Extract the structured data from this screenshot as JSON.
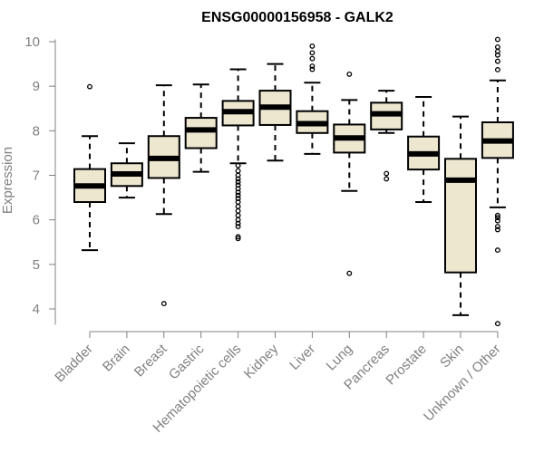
{
  "chart_data": {
    "type": "boxplot",
    "title": "ENSG00000156958 - GALK2",
    "xlabel": "",
    "ylabel": "Expression",
    "ylim": [
      3.65,
      10.05
    ],
    "yticks": [
      4,
      5,
      6,
      7,
      8,
      9,
      10
    ],
    "categories": [
      "Bladder",
      "Brain",
      "Breast",
      "Gastric",
      "Hematopoietic cells",
      "Kidney",
      "Liver",
      "Lung",
      "Pancreas",
      "Prostate",
      "Skin",
      "Unknown / Other"
    ],
    "boxes": [
      {
        "name": "Bladder",
        "whisker_low": 5.32,
        "q1": 6.4,
        "median": 6.76,
        "q3": 7.14,
        "whisker_high": 7.88,
        "outliers": [
          8.99
        ]
      },
      {
        "name": "Brain",
        "whisker_low": 6.5,
        "q1": 6.76,
        "median": 7.03,
        "q3": 7.27,
        "whisker_high": 7.72,
        "outliers": []
      },
      {
        "name": "Breast",
        "whisker_low": 6.13,
        "q1": 6.94,
        "median": 7.38,
        "q3": 7.88,
        "whisker_high": 9.02,
        "outliers": [
          4.12
        ]
      },
      {
        "name": "Gastric",
        "whisker_low": 7.08,
        "q1": 7.61,
        "median": 8.02,
        "q3": 8.29,
        "whisker_high": 9.04,
        "outliers": []
      },
      {
        "name": "Hematopoietic cells",
        "whisker_low": 7.27,
        "q1": 8.12,
        "median": 8.43,
        "q3": 8.67,
        "whisker_high": 9.38,
        "outliers": [
          7.22,
          7.1,
          7.0,
          6.92,
          6.85,
          6.78,
          6.7,
          6.62,
          6.55,
          6.48,
          6.4,
          6.3,
          6.2,
          6.1,
          6.0,
          5.92,
          5.85,
          5.62,
          5.58
        ]
      },
      {
        "name": "Kidney",
        "whisker_low": 7.33,
        "q1": 8.13,
        "median": 8.53,
        "q3": 8.9,
        "whisker_high": 9.5,
        "outliers": []
      },
      {
        "name": "Liver",
        "whisker_low": 7.48,
        "q1": 7.95,
        "median": 8.16,
        "q3": 8.44,
        "whisker_high": 9.08,
        "outliers": [
          9.38,
          9.45,
          9.62,
          9.75,
          9.9
        ]
      },
      {
        "name": "Lung",
        "whisker_low": 6.65,
        "q1": 7.51,
        "median": 7.84,
        "q3": 8.14,
        "whisker_high": 8.69,
        "outliers": [
          9.27,
          4.8
        ]
      },
      {
        "name": "Pancreas",
        "whisker_low": 7.95,
        "q1": 8.03,
        "median": 8.38,
        "q3": 8.63,
        "whisker_high": 8.9,
        "outliers": [
          7.04,
          6.92
        ]
      },
      {
        "name": "Prostate",
        "whisker_low": 6.4,
        "q1": 7.13,
        "median": 7.48,
        "q3": 7.87,
        "whisker_high": 8.76,
        "outliers": []
      },
      {
        "name": "Skin",
        "whisker_low": 3.86,
        "q1": 4.82,
        "median": 6.89,
        "q3": 7.37,
        "whisker_high": 8.32,
        "outliers": []
      },
      {
        "name": "Unknown / Other",
        "whisker_low": 6.28,
        "q1": 7.39,
        "median": 7.77,
        "q3": 8.19,
        "whisker_high": 9.13,
        "outliers": [
          9.37,
          9.56,
          9.7,
          9.78,
          9.88,
          10.05,
          6.1,
          6.05,
          5.98,
          5.85,
          5.78,
          5.32,
          3.67
        ]
      }
    ]
  }
}
